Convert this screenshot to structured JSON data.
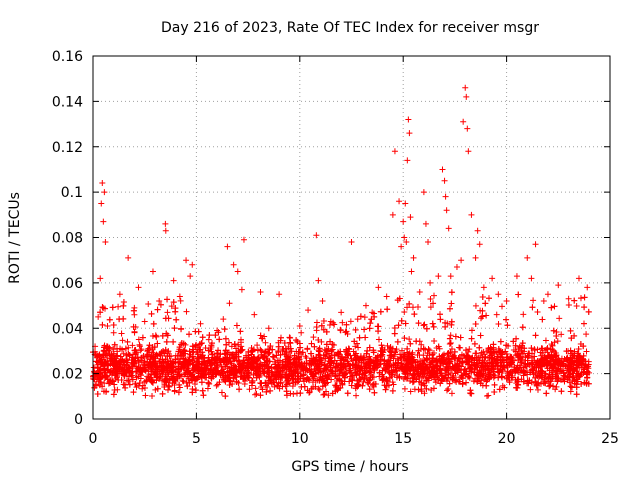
{
  "chart_data": {
    "type": "scatter",
    "title": "Day 216 of 2023, Rate Of TEC Index for receiver msgr",
    "xlabel": "GPS time / hours",
    "ylabel": "ROTI / TECUs",
    "xlim": [
      0,
      25
    ],
    "ylim": [
      0,
      0.16
    ],
    "x_ticks": [
      0,
      5,
      10,
      15,
      20,
      25
    ],
    "x_tick_labels": [
      "0",
      "5",
      "10",
      "15",
      "20",
      "25"
    ],
    "y_ticks": [
      0,
      0.02,
      0.04,
      0.06,
      0.08,
      0.1,
      0.12,
      0.14,
      0.16
    ],
    "y_tick_labels": [
      "0",
      "0.02",
      "0.04",
      "0.06",
      "0.08",
      "0.1",
      "0.12",
      "0.14",
      "0.16"
    ],
    "grid": true,
    "marker": "+",
    "series": [
      {
        "name": "ROTI",
        "color": "#ff0000",
        "points": [
          [
            0.05,
            0.021
          ],
          [
            0.1,
            0.032
          ],
          [
            0.2,
            0.027
          ],
          [
            0.25,
            0.045
          ],
          [
            0.3,
            0.018
          ],
          [
            0.35,
            0.062
          ],
          [
            0.4,
            0.095
          ],
          [
            0.45,
            0.104
          ],
          [
            0.5,
            0.087
          ],
          [
            0.55,
            0.1
          ],
          [
            0.6,
            0.078
          ],
          [
            0.7,
            0.041
          ],
          [
            1.0,
            0.038
          ],
          [
            1.3,
            0.055
          ],
          [
            1.5,
            0.024
          ],
          [
            1.7,
            0.071
          ],
          [
            2.0,
            0.049
          ],
          [
            2.2,
            0.058
          ],
          [
            2.5,
            0.043
          ],
          [
            2.9,
            0.065
          ],
          [
            3.2,
            0.052
          ],
          [
            3.5,
            0.086
          ],
          [
            3.52,
            0.083
          ],
          [
            3.6,
            0.047
          ],
          [
            3.9,
            0.061
          ],
          [
            4.2,
            0.054
          ],
          [
            4.5,
            0.07
          ],
          [
            4.7,
            0.063
          ],
          [
            4.8,
            0.068
          ],
          [
            5.2,
            0.042
          ],
          [
            5.6,
            0.035
          ],
          [
            6.0,
            0.039
          ],
          [
            6.3,
            0.044
          ],
          [
            6.5,
            0.076
          ],
          [
            6.6,
            0.051
          ],
          [
            6.8,
            0.068
          ],
          [
            7.0,
            0.065
          ],
          [
            7.2,
            0.057
          ],
          [
            7.3,
            0.079
          ],
          [
            7.8,
            0.046
          ],
          [
            8.1,
            0.056
          ],
          [
            8.5,
            0.04
          ],
          [
            9.0,
            0.055
          ],
          [
            9.5,
            0.036
          ],
          [
            10.0,
            0.041
          ],
          [
            10.4,
            0.048
          ],
          [
            10.8,
            0.081
          ],
          [
            10.9,
            0.061
          ],
          [
            11.1,
            0.052
          ],
          [
            11.5,
            0.043
          ],
          [
            12.0,
            0.047
          ],
          [
            12.5,
            0.078
          ],
          [
            12.8,
            0.044
          ],
          [
            13.2,
            0.05
          ],
          [
            13.5,
            0.047
          ],
          [
            13.8,
            0.058
          ],
          [
            14.2,
            0.054
          ],
          [
            14.5,
            0.09
          ],
          [
            14.6,
            0.118
          ],
          [
            14.8,
            0.096
          ],
          [
            14.9,
            0.076
          ],
          [
            15.0,
            0.087
          ],
          [
            15.05,
            0.08
          ],
          [
            15.1,
            0.095
          ],
          [
            15.15,
            0.078
          ],
          [
            15.2,
            0.114
          ],
          [
            15.25,
            0.132
          ],
          [
            15.3,
            0.126
          ],
          [
            15.35,
            0.089
          ],
          [
            15.4,
            0.065
          ],
          [
            15.5,
            0.071
          ],
          [
            15.8,
            0.056
          ],
          [
            16.0,
            0.1
          ],
          [
            16.1,
            0.086
          ],
          [
            16.2,
            0.078
          ],
          [
            16.3,
            0.06
          ],
          [
            16.7,
            0.063
          ],
          [
            16.9,
            0.11
          ],
          [
            17.0,
            0.105
          ],
          [
            17.05,
            0.098
          ],
          [
            17.1,
            0.092
          ],
          [
            17.2,
            0.084
          ],
          [
            17.3,
            0.063
          ],
          [
            17.6,
            0.067
          ],
          [
            17.8,
            0.07
          ],
          [
            17.9,
            0.131
          ],
          [
            18.0,
            0.146
          ],
          [
            18.05,
            0.142
          ],
          [
            18.1,
            0.128
          ],
          [
            18.15,
            0.118
          ],
          [
            18.3,
            0.09
          ],
          [
            18.5,
            0.071
          ],
          [
            18.6,
            0.083
          ],
          [
            18.7,
            0.077
          ],
          [
            18.9,
            0.058
          ],
          [
            19.3,
            0.062
          ],
          [
            19.6,
            0.055
          ],
          [
            20.0,
            0.052
          ],
          [
            20.5,
            0.063
          ],
          [
            21.0,
            0.071
          ],
          [
            21.2,
            0.062
          ],
          [
            21.4,
            0.077
          ],
          [
            21.8,
            0.052
          ],
          [
            22.0,
            0.055
          ],
          [
            22.5,
            0.059
          ],
          [
            23.0,
            0.053
          ],
          [
            23.5,
            0.062
          ],
          [
            23.9,
            0.058
          ]
        ],
        "baseline_band": {
          "x_range": [
            0,
            24
          ],
          "typical_range": [
            0.01,
            0.035
          ],
          "dense_cluster_max_profile": [
            [
              0,
              0.045
            ],
            [
              1,
              0.055
            ],
            [
              2,
              0.05
            ],
            [
              3,
              0.052
            ],
            [
              4,
              0.058
            ],
            [
              5,
              0.04
            ],
            [
              6,
              0.038
            ],
            [
              7,
              0.045
            ],
            [
              8,
              0.04
            ],
            [
              9,
              0.038
            ],
            [
              10,
              0.042
            ],
            [
              11,
              0.048
            ],
            [
              12,
              0.045
            ],
            [
              13,
              0.048
            ],
            [
              14,
              0.05
            ],
            [
              15,
              0.055
            ],
            [
              16,
              0.055
            ],
            [
              17,
              0.055
            ],
            [
              18,
              0.06
            ],
            [
              19,
              0.055
            ],
            [
              20,
              0.052
            ],
            [
              21,
              0.058
            ],
            [
              22,
              0.05
            ],
            [
              23,
              0.052
            ],
            [
              24,
              0.055
            ]
          ]
        }
      }
    ]
  }
}
